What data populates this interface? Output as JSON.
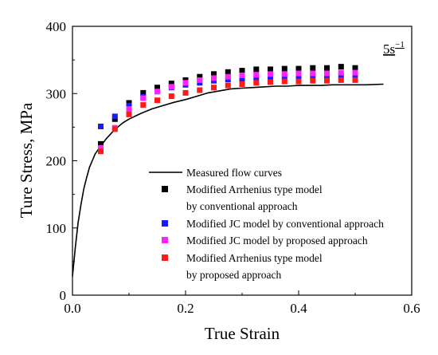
{
  "chart_data": {
    "type": "scatter",
    "title": "",
    "annotation": {
      "base": "5s",
      "superscript": "−1",
      "position": "top-right"
    },
    "xlabel": "True Strain",
    "ylabel": "Ture Stress, MPa",
    "xlim": [
      0.0,
      0.6
    ],
    "ylim": [
      0,
      400
    ],
    "xticks": [
      0.0,
      0.2,
      0.4,
      0.6
    ],
    "xtick_labels": [
      "0.0",
      "0.2",
      "0.4",
      "0.6"
    ],
    "yticks": [
      0,
      100,
      200,
      300,
      400
    ],
    "ytick_labels": [
      "0",
      "100",
      "200",
      "300",
      "400"
    ],
    "grid": false,
    "legend_position": "bottom-right",
    "curve": {
      "name": "Measured flow curves",
      "color": "#000000",
      "points": [
        [
          0.0,
          28
        ],
        [
          0.002,
          45
        ],
        [
          0.005,
          70
        ],
        [
          0.01,
          108
        ],
        [
          0.015,
          135
        ],
        [
          0.02,
          158
        ],
        [
          0.025,
          175
        ],
        [
          0.03,
          190
        ],
        [
          0.04,
          210
        ],
        [
          0.05,
          222
        ],
        [
          0.06,
          233
        ],
        [
          0.07,
          242
        ],
        [
          0.08,
          250
        ],
        [
          0.09,
          257
        ],
        [
          0.1,
          262
        ],
        [
          0.12,
          270
        ],
        [
          0.14,
          277
        ],
        [
          0.16,
          282
        ],
        [
          0.18,
          287
        ],
        [
          0.2,
          291
        ],
        [
          0.22,
          296
        ],
        [
          0.24,
          301
        ],
        [
          0.26,
          304
        ],
        [
          0.28,
          307
        ],
        [
          0.3,
          308
        ],
        [
          0.32,
          309
        ],
        [
          0.34,
          310
        ],
        [
          0.36,
          311
        ],
        [
          0.38,
          311
        ],
        [
          0.4,
          312
        ],
        [
          0.42,
          312
        ],
        [
          0.44,
          312
        ],
        [
          0.46,
          313
        ],
        [
          0.48,
          313
        ],
        [
          0.5,
          313
        ],
        [
          0.52,
          313
        ],
        [
          0.55,
          314
        ]
      ]
    },
    "x": [
      0.05,
      0.075,
      0.1,
      0.125,
      0.15,
      0.175,
      0.2,
      0.225,
      0.25,
      0.275,
      0.3,
      0.325,
      0.35,
      0.375,
      0.4,
      0.425,
      0.45,
      0.475,
      0.5
    ],
    "series": [
      {
        "name": "Modified Arrhenius type model",
        "name_line2": "by conventional approach",
        "color": "#000000",
        "values": [
          225,
          262,
          286,
          301,
          309,
          315,
          320,
          325,
          329,
          332,
          334,
          336,
          336,
          337,
          337,
          338,
          338,
          340,
          338
        ]
      },
      {
        "name": "Modified JC model by conventional approach",
        "name_line2": "",
        "color": "#1a1aff",
        "values": [
          251,
          266,
          282,
          295,
          303,
          309,
          313,
          316,
          319,
          321,
          322,
          323,
          324,
          325,
          325,
          326,
          326,
          326,
          326
        ]
      },
      {
        "name": "Modified JC model by proposed approach",
        "name_line2": "",
        "color": "#ff22ff",
        "values": [
          219,
          249,
          277,
          293,
          303,
          310,
          316,
          320,
          323,
          325,
          327,
          328,
          329,
          329,
          330,
          330,
          330,
          331,
          331
        ]
      },
      {
        "name": "Modified Arrhenius type model",
        "name_line2": "by proposed approach",
        "color": "#ff1a1a",
        "values": [
          214,
          247,
          269,
          283,
          290,
          296,
          301,
          305,
          309,
          312,
          314,
          316,
          317,
          318,
          318,
          319,
          319,
          320,
          320
        ]
      }
    ]
  }
}
